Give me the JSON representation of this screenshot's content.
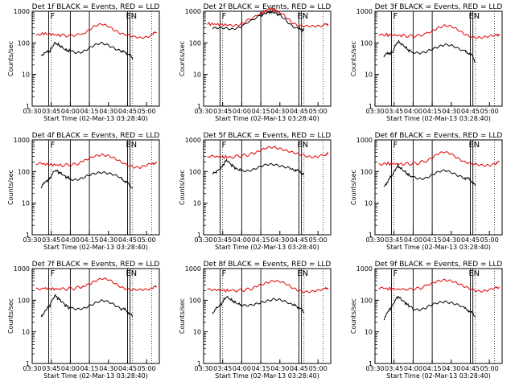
{
  "colors": {
    "events": "#000000",
    "lld": "#e00000",
    "axes": "#000000",
    "background": "#ffffff"
  },
  "shared": {
    "xticks": [
      "03:30",
      "03:45",
      "04:00",
      "04:15",
      "04:30",
      "04:45",
      "05:00"
    ],
    "yticks": [
      "1",
      "10",
      "100",
      "1000"
    ],
    "ylabel": "Counts/sec",
    "xlabel": "Start Time (02-Mar-13 03:28:40)",
    "flag_f": "F",
    "flag_e": "E",
    "flag_n": "N"
  },
  "chart_data": [
    {
      "type": "line",
      "title": "Det 1f BLACK = Events, RED = LLD",
      "xlabel": "Start Time (02-Mar-13 03:28:40)",
      "ylabel": "Counts/sec",
      "xlim_min": [
        210,
        310
      ],
      "ylim": [
        1,
        1000
      ],
      "yscale": "log",
      "legend": "none",
      "series": [
        {
          "color": "red",
          "x": [
            213,
            218,
            225,
            232,
            238,
            244,
            250,
            255,
            260,
            265,
            270,
            275,
            280,
            285,
            290,
            295,
            300,
            305,
            308
          ],
          "values": [
            180,
            200,
            185,
            175,
            170,
            175,
            200,
            260,
            340,
            380,
            340,
            260,
            200,
            170,
            150,
            145,
            160,
            190,
            215
          ]
        },
        {
          "color": "black",
          "x": [
            217,
            220,
            224,
            228,
            232,
            236,
            240,
            245,
            250,
            255,
            260,
            265,
            270,
            275,
            280,
            283,
            286,
            289
          ],
          "values": [
            40,
            50,
            55,
            100,
            80,
            60,
            55,
            50,
            55,
            70,
            85,
            95,
            85,
            70,
            55,
            50,
            45,
            30
          ]
        }
      ]
    },
    {
      "type": "line",
      "title": "Det 2f BLACK = Events, RED = LLD",
      "xlabel": "Start Time (02-Mar-13 03:28:40)",
      "ylabel": "Counts/sec",
      "xlim_min": [
        210,
        310
      ],
      "ylim": [
        1,
        1000
      ],
      "yscale": "log",
      "legend": "none",
      "series": [
        {
          "color": "red",
          "x": [
            213,
            220,
            227,
            232,
            237,
            242,
            248,
            254,
            258,
            262,
            266,
            270,
            275,
            280,
            285,
            290,
            295,
            300,
            305,
            308
          ],
          "values": [
            400,
            390,
            370,
            350,
            380,
            450,
            600,
            800,
            1000,
            1200,
            1100,
            900,
            650,
            450,
            350,
            330,
            320,
            340,
            370,
            400
          ]
        },
        {
          "color": "black",
          "x": [
            217,
            222,
            227,
            232,
            237,
            242,
            248,
            254,
            258,
            262,
            266,
            270,
            275,
            280,
            285,
            289
          ],
          "values": [
            300,
            290,
            280,
            270,
            310,
            380,
            520,
            700,
            850,
            950,
            900,
            750,
            500,
            350,
            280,
            250
          ]
        }
      ]
    },
    {
      "type": "line",
      "title": "Det 3f BLACK = Events, RED = LLD",
      "xlabel": "Start Time (02-Mar-13 03:28:40)",
      "ylabel": "Counts/sec",
      "xlim_min": [
        210,
        310
      ],
      "ylim": [
        1,
        1000
      ],
      "yscale": "log",
      "legend": "none",
      "series": [
        {
          "color": "red",
          "x": [
            213,
            218,
            225,
            232,
            238,
            244,
            250,
            255,
            260,
            265,
            270,
            275,
            280,
            285,
            290,
            295,
            300,
            305,
            308
          ],
          "values": [
            175,
            180,
            175,
            170,
            165,
            170,
            190,
            240,
            320,
            360,
            320,
            250,
            195,
            165,
            150,
            145,
            155,
            175,
            190
          ]
        },
        {
          "color": "black",
          "x": [
            217,
            220,
            224,
            228,
            232,
            236,
            240,
            245,
            250,
            255,
            260,
            265,
            270,
            275,
            280,
            283,
            286,
            289
          ],
          "values": [
            40,
            45,
            50,
            110,
            85,
            60,
            50,
            45,
            50,
            65,
            80,
            90,
            80,
            65,
            55,
            50,
            40,
            25
          ]
        }
      ]
    },
    {
      "type": "line",
      "title": "Det 4f BLACK = Events, RED = LLD",
      "xlabel": "Start Time (02-Mar-13 03:28:40)",
      "ylabel": "Counts/sec",
      "xlim_min": [
        210,
        310
      ],
      "ylim": [
        1,
        1000
      ],
      "yscale": "log",
      "legend": "none",
      "series": [
        {
          "color": "red",
          "x": [
            213,
            218,
            225,
            232,
            238,
            244,
            250,
            255,
            260,
            265,
            270,
            275,
            280,
            285,
            290,
            295,
            300,
            305,
            308
          ],
          "values": [
            170,
            175,
            165,
            160,
            160,
            170,
            200,
            250,
            320,
            360,
            320,
            250,
            190,
            160,
            145,
            140,
            155,
            180,
            200
          ]
        },
        {
          "color": "black",
          "x": [
            217,
            220,
            224,
            228,
            232,
            236,
            240,
            245,
            250,
            255,
            260,
            265,
            270,
            275,
            280,
            283,
            286,
            289
          ],
          "values": [
            30,
            45,
            60,
            110,
            90,
            70,
            60,
            55,
            60,
            75,
            90,
            100,
            90,
            75,
            60,
            50,
            40,
            30
          ]
        }
      ]
    },
    {
      "type": "line",
      "title": "Det 5f BLACK = Events, RED = LLD",
      "xlabel": "Start Time (02-Mar-13 03:28:40)",
      "ylabel": "Counts/sec",
      "xlim_min": [
        210,
        310
      ],
      "ylim": [
        1,
        1000
      ],
      "yscale": "log",
      "legend": "none",
      "series": [
        {
          "color": "red",
          "x": [
            213,
            218,
            225,
            232,
            238,
            244,
            250,
            255,
            260,
            265,
            270,
            275,
            280,
            285,
            290,
            295,
            300,
            305,
            308
          ],
          "values": [
            300,
            300,
            290,
            290,
            310,
            330,
            380,
            450,
            550,
            600,
            560,
            470,
            390,
            340,
            310,
            300,
            310,
            340,
            370
          ]
        },
        {
          "color": "black",
          "x": [
            217,
            220,
            224,
            228,
            232,
            236,
            240,
            245,
            250,
            255,
            260,
            265,
            270,
            275,
            280,
            283,
            286,
            289
          ],
          "values": [
            80,
            100,
            130,
            230,
            160,
            120,
            110,
            110,
            120,
            140,
            160,
            170,
            160,
            140,
            120,
            110,
            100,
            80
          ]
        }
      ]
    },
    {
      "type": "line",
      "title": "Det 6f BLACK = Events, RED = LLD",
      "xlabel": "Start Time (02-Mar-13 03:28:40)",
      "ylabel": "Counts/sec",
      "xlim_min": [
        210,
        310
      ],
      "ylim": [
        1,
        1000
      ],
      "yscale": "log",
      "legend": "none",
      "series": [
        {
          "color": "red",
          "x": [
            213,
            218,
            225,
            232,
            238,
            244,
            250,
            255,
            260,
            265,
            270,
            275,
            280,
            285,
            290,
            295,
            300,
            305,
            308
          ],
          "values": [
            175,
            180,
            175,
            175,
            175,
            185,
            220,
            280,
            360,
            400,
            360,
            280,
            210,
            175,
            160,
            155,
            165,
            185,
            205
          ]
        },
        {
          "color": "black",
          "x": [
            217,
            220,
            224,
            228,
            232,
            236,
            240,
            245,
            250,
            255,
            260,
            265,
            270,
            275,
            280,
            283,
            286,
            289
          ],
          "values": [
            30,
            50,
            80,
            150,
            110,
            80,
            65,
            60,
            65,
            80,
            95,
            105,
            95,
            80,
            65,
            60,
            50,
            35
          ]
        }
      ]
    },
    {
      "type": "line",
      "title": "Det 7f BLACK = Events, RED = LLD",
      "xlabel": "Start Time (02-Mar-13 03:28:40)",
      "ylabel": "Counts/sec",
      "xlim_min": [
        210,
        310
      ],
      "ylim": [
        1,
        1000
      ],
      "yscale": "log",
      "legend": "none",
      "series": [
        {
          "color": "red",
          "x": [
            213,
            218,
            225,
            232,
            238,
            244,
            250,
            255,
            260,
            265,
            270,
            275,
            280,
            285,
            290,
            295,
            300,
            305,
            308
          ],
          "values": [
            230,
            240,
            230,
            225,
            230,
            240,
            280,
            340,
            420,
            470,
            430,
            340,
            270,
            230,
            210,
            205,
            215,
            245,
            270
          ]
        },
        {
          "color": "black",
          "x": [
            217,
            220,
            224,
            228,
            232,
            236,
            240,
            245,
            250,
            255,
            260,
            265,
            270,
            275,
            280,
            283,
            286,
            289
          ],
          "values": [
            30,
            45,
            70,
            140,
            100,
            70,
            55,
            50,
            55,
            70,
            85,
            95,
            85,
            70,
            55,
            50,
            40,
            30
          ]
        }
      ]
    },
    {
      "type": "line",
      "title": "Det 8f BLACK = Events, RED = LLD",
      "xlabel": "Start Time (02-Mar-13 03:28:40)",
      "ylabel": "Counts/sec",
      "xlim_min": [
        210,
        310
      ],
      "ylim": [
        1,
        1000
      ],
      "yscale": "log",
      "legend": "none",
      "series": [
        {
          "color": "red",
          "x": [
            213,
            218,
            225,
            232,
            238,
            244,
            250,
            255,
            260,
            265,
            270,
            275,
            280,
            285,
            290,
            295,
            300,
            305,
            308
          ],
          "values": [
            210,
            215,
            205,
            200,
            205,
            215,
            250,
            310,
            380,
            420,
            380,
            310,
            245,
            210,
            190,
            185,
            195,
            220,
            240
          ]
        },
        {
          "color": "black",
          "x": [
            217,
            220,
            224,
            228,
            232,
            236,
            240,
            245,
            250,
            255,
            260,
            265,
            270,
            275,
            280,
            283,
            286,
            289
          ],
          "values": [
            40,
            55,
            75,
            130,
            100,
            80,
            70,
            65,
            70,
            85,
            100,
            110,
            100,
            85,
            70,
            65,
            55,
            40
          ]
        }
      ]
    },
    {
      "type": "line",
      "title": "Det 9f BLACK = Events, RED = LLD",
      "xlabel": "Start Time (02-Mar-13 03:28:40)",
      "ylabel": "Counts/sec",
      "xlim_min": [
        210,
        310
      ],
      "ylim": [
        1,
        1000
      ],
      "yscale": "log",
      "legend": "none",
      "series": [
        {
          "color": "red",
          "x": [
            213,
            218,
            225,
            232,
            238,
            244,
            250,
            255,
            260,
            265,
            270,
            275,
            280,
            285,
            290,
            295,
            300,
            305,
            308
          ],
          "values": [
            230,
            235,
            225,
            220,
            225,
            235,
            270,
            330,
            410,
            460,
            420,
            330,
            260,
            225,
            205,
            200,
            210,
            240,
            265
          ]
        },
        {
          "color": "black",
          "x": [
            217,
            220,
            224,
            228,
            232,
            236,
            240,
            245,
            250,
            255,
            260,
            265,
            270,
            275,
            280,
            283,
            286,
            289
          ],
          "values": [
            25,
            40,
            70,
            130,
            95,
            70,
            55,
            50,
            55,
            70,
            85,
            95,
            85,
            70,
            55,
            50,
            40,
            30
          ]
        }
      ]
    }
  ]
}
